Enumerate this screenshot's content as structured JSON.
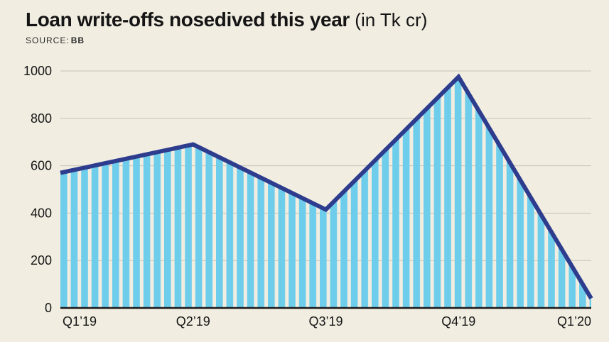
{
  "header": {
    "title_bold": "Loan write-offs nosedived this year",
    "title_light": "(in Tk cr)",
    "source_label": "SOURCE:",
    "source_value": "BB"
  },
  "chart_data": {
    "type": "area",
    "title": "Loan write-offs nosedived this year (in Tk cr)",
    "categories": [
      "Q1’19",
      "Q2’19",
      "Q3’19",
      "Q4’19",
      "Q1’20"
    ],
    "values": [
      570,
      690,
      415,
      975,
      40
    ],
    "xlabel": "",
    "ylabel": "",
    "ylim": [
      0,
      1000
    ],
    "yticks": [
      0,
      200,
      400,
      600,
      800,
      1000
    ],
    "grid": true,
    "legend": false,
    "source": "BB",
    "colors": {
      "background": "#f1ede1",
      "area_stripe": "#6fcdec",
      "line": "#2e3c8e",
      "gridline": "#c6c2b4",
      "axis": "#1a1a1a",
      "text": "#161616"
    }
  }
}
